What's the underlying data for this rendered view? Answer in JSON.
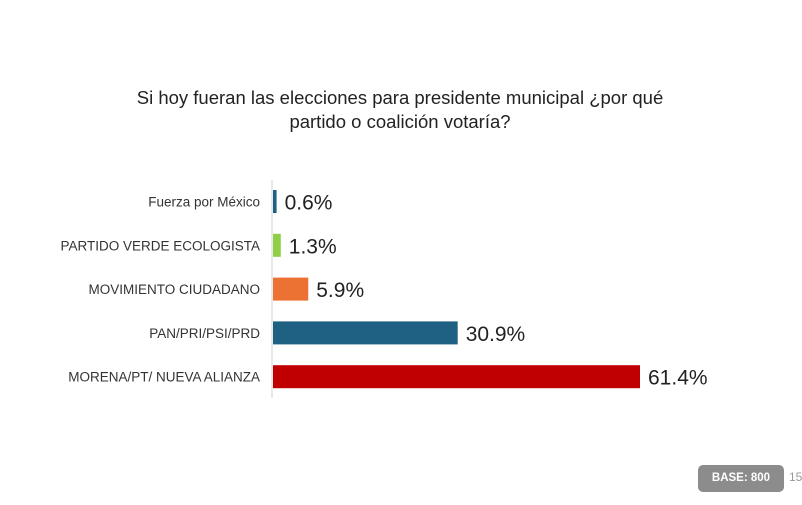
{
  "chart_data": {
    "type": "bar",
    "orientation": "horizontal",
    "title_lines": [
      "Si hoy fueran las elecciones para presidente municipal ¿por qué",
      "partido o coalición votaría?"
    ],
    "categories": [
      "Fuerza por México",
      "PARTIDO VERDE ECOLOGISTA",
      "MOVIMIENTO CIUDADANO",
      "PAN/PRI/PSI/PRD",
      "MORENA/PT/ NUEVA ALIANZA"
    ],
    "values": [
      0.6,
      1.3,
      5.9,
      30.9,
      61.4
    ],
    "value_labels": [
      "0.6%",
      "1.3%",
      "5.9%",
      "30.9%",
      "61.4%"
    ],
    "colors": [
      "#1f6182",
      "#8fce45",
      "#ec7233",
      "#1f6182",
      "#c00000"
    ],
    "xlim": [
      0,
      61.4
    ],
    "grid": false
  },
  "footer": {
    "base_label": "BASE: 800",
    "page_number": "15"
  }
}
